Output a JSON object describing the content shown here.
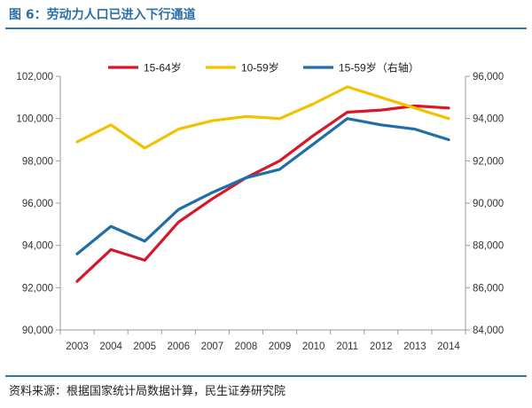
{
  "figure": {
    "title": "图 6：劳动力人口已进入下行通道",
    "source": "资料来源：根据国家统计局数据计算，民生证券研究院"
  },
  "chart_data": {
    "type": "line",
    "title": "",
    "xlabel": "",
    "ylabel": "",
    "x": [
      "2003",
      "2004",
      "2005",
      "2006",
      "2007",
      "2008",
      "2009",
      "2010",
      "2011",
      "2012",
      "2013",
      "2014"
    ],
    "y_left": {
      "min": 90000,
      "max": 102000,
      "ticks": [
        "90,000",
        "92,000",
        "94,000",
        "96,000",
        "98,000",
        "100,000",
        "102,000"
      ]
    },
    "y_right": {
      "min": 84000,
      "max": 96000,
      "ticks": [
        "84,000",
        "86,000",
        "88,000",
        "90,000",
        "92,000",
        "94,000",
        "96,000"
      ]
    },
    "legend_position": "top",
    "grid": false,
    "series": [
      {
        "name": "15-64岁",
        "axis": "left",
        "color": "#d7182a",
        "values": [
          92300,
          93800,
          93300,
          95100,
          96200,
          97200,
          98000,
          99200,
          100300,
          100400,
          100600,
          100500
        ]
      },
      {
        "name": "10-59岁",
        "axis": "left",
        "color": "#f2c200",
        "values": [
          98900,
          99700,
          98600,
          99500,
          99900,
          100100,
          100000,
          100700,
          101500,
          101000,
          100500,
          100000
        ]
      },
      {
        "name": "15-59岁（右轴）",
        "axis": "right",
        "color": "#1f6ea8",
        "values": [
          87600,
          88900,
          88200,
          89700,
          90500,
          91200,
          91600,
          92800,
          94000,
          93700,
          93500,
          93000
        ]
      }
    ]
  }
}
